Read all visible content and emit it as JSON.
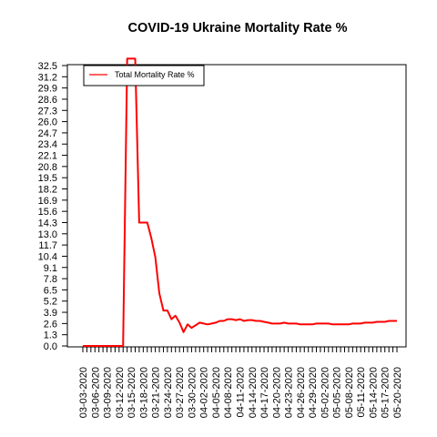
{
  "chart_data": {
    "type": "line",
    "title": "COVID-19 Ukraine Mortality Rate %",
    "xlabel": "",
    "ylabel": "",
    "ylim": [
      0,
      32.5
    ],
    "grid": false,
    "legend_position": "top-left",
    "y_ticks": [
      "0.0",
      "1.3",
      "2.6",
      "3.9",
      "5.2",
      "6.5",
      "7.8",
      "9.1",
      "10.4",
      "11.7",
      "13.0",
      "14.3",
      "15.6",
      "16.9",
      "18.2",
      "19.5",
      "20.8",
      "22.1",
      "23.4",
      "24.7",
      "26.0",
      "27.3",
      "28.6",
      "29.9",
      "31.2",
      "32.5"
    ],
    "x_tick_labels": [
      "03-03-2020",
      "03-06-2020",
      "03-09-2020",
      "03-12-2020",
      "03-15-2020",
      "03-18-2020",
      "03-21-2020",
      "03-24-2020",
      "03-27-2020",
      "03-30-2020",
      "04-02-2020",
      "04-05-2020",
      "04-08-2020",
      "04-11-2020",
      "04-14-2020",
      "04-17-2020",
      "04-20-2020",
      "04-23-2020",
      "04-26-2020",
      "04-29-2020",
      "05-02-2020",
      "05-05-2020",
      "05-08-2020",
      "05-11-2020",
      "05-14-2020",
      "05-17-2020",
      "05-20-2020"
    ],
    "x_start": "2020-03-03",
    "x_end": "2020-05-20",
    "series": [
      {
        "name": "Total Mortality Rate %",
        "color": "#ff0000",
        "values": [
          0,
          0,
          0,
          0,
          0,
          0,
          0,
          0,
          0,
          0,
          0,
          33.3,
          33.3,
          33.3,
          14.3,
          14.3,
          14.3,
          12.5,
          10.3,
          6.1,
          4.1,
          4.1,
          3.1,
          3.5,
          2.7,
          1.6,
          2.5,
          2.1,
          2.4,
          2.7,
          2.6,
          2.5,
          2.6,
          2.7,
          2.9,
          2.9,
          3.1,
          3.1,
          3.0,
          3.1,
          2.9,
          3.0,
          3.0,
          2.9,
          2.9,
          2.8,
          2.7,
          2.6,
          2.6,
          2.6,
          2.7,
          2.6,
          2.6,
          2.6,
          2.5,
          2.5,
          2.5,
          2.5,
          2.6,
          2.6,
          2.6,
          2.6,
          2.5,
          2.5,
          2.5,
          2.5,
          2.5,
          2.6,
          2.6,
          2.6,
          2.7,
          2.7,
          2.7,
          2.8,
          2.8,
          2.8,
          2.9,
          2.9,
          2.9
        ]
      }
    ]
  }
}
